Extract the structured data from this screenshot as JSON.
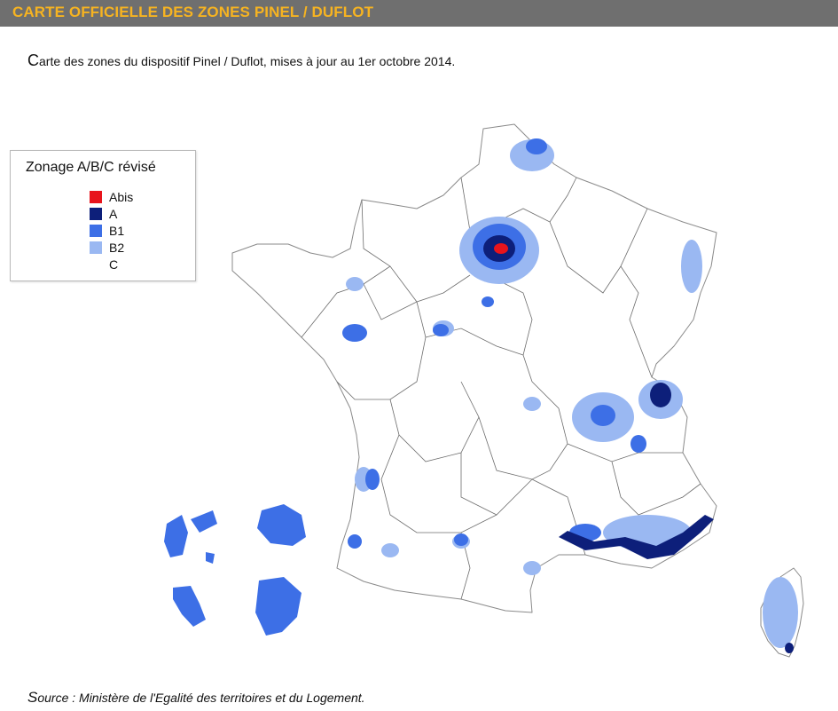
{
  "header": {
    "title": "CARTE OFFICIELLE DES ZONES PINEL / DUFLOT"
  },
  "intro": "Carte des zones du dispositif Pinel / Duflot, mises à jour au 1er octobre 2014.",
  "legend": {
    "title": "Zonage A/B/C révisé",
    "items": [
      {
        "label": "Abis",
        "color": "#e8141c"
      },
      {
        "label": "A",
        "color": "#0d1f7a"
      },
      {
        "label": "B1",
        "color": "#3d6fe6"
      },
      {
        "label": "B2",
        "color": "#9ab8f2"
      },
      {
        "label": "C",
        "color": "#ffffff"
      }
    ]
  },
  "source": "Source : Ministère de l'Egalité des territoires et du Logement."
}
